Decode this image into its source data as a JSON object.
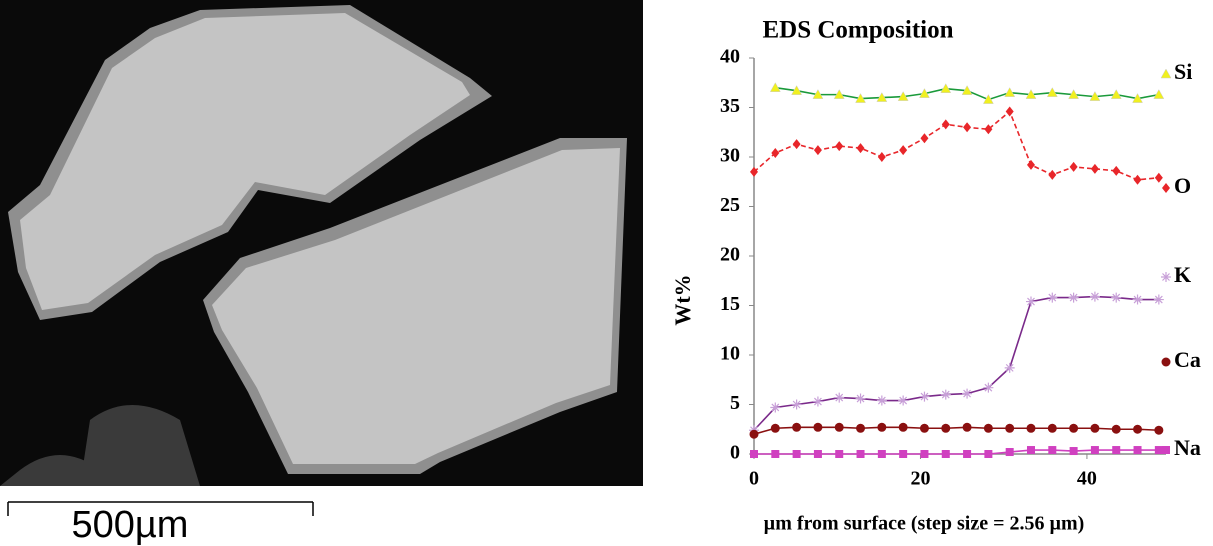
{
  "image": {
    "scale_label": "500µm"
  },
  "chart_data": {
    "type": "line",
    "title": "EDS Composition",
    "y_label": "Wt%",
    "x_label": "µm from surface (step size = 2.56 µm)",
    "x": [
      0,
      2.56,
      5.12,
      7.68,
      10.24,
      12.8,
      15.36,
      17.92,
      20.48,
      23.04,
      25.6,
      28.16,
      30.72,
      33.28,
      35.84,
      38.4,
      40.96,
      43.52,
      46.08,
      48.64
    ],
    "xlim": [
      0,
      49.5
    ],
    "xticks": [
      0,
      20,
      40
    ],
    "ylim": [
      0,
      40
    ],
    "yticks": [
      0,
      5,
      10,
      15,
      20,
      25,
      30,
      35,
      40
    ],
    "grid": false,
    "series": [
      {
        "name": "Si",
        "color": "#1a9a3a",
        "marker": "triangle",
        "marker_color": "#f0f020",
        "dashed": false,
        "values": [
          null,
          37.0,
          36.7,
          36.3,
          36.3,
          35.9,
          36.0,
          36.1,
          36.4,
          36.9,
          36.7,
          35.8,
          36.5,
          36.3,
          36.5,
          36.3,
          36.1,
          36.3,
          35.9,
          36.3
        ]
      },
      {
        "name": "O",
        "color": "#e8262a",
        "marker": "diamond",
        "marker_color": "#e8262a",
        "dashed": true,
        "values": [
          28.5,
          30.4,
          31.3,
          30.7,
          31.1,
          30.9,
          30.0,
          30.7,
          31.9,
          33.3,
          33.0,
          32.8,
          34.6,
          29.2,
          28.2,
          29.0,
          28.8,
          28.6,
          27.7,
          27.9
        ]
      },
      {
        "name": "K",
        "color": "#7a2a8a",
        "marker": "asterisk",
        "marker_color": "#c8a0d8",
        "dashed": false,
        "values": [
          2.4,
          4.7,
          5.0,
          5.3,
          5.7,
          5.6,
          5.4,
          5.4,
          5.8,
          6.0,
          6.1,
          6.7,
          8.7,
          15.4,
          15.8,
          15.8,
          15.9,
          15.8,
          15.6,
          15.6
        ]
      },
      {
        "name": "Ca",
        "color": "#8a1010",
        "marker": "circle",
        "marker_color": "#8a1010",
        "dashed": false,
        "values": [
          2.0,
          2.6,
          2.7,
          2.7,
          2.7,
          2.6,
          2.7,
          2.7,
          2.6,
          2.6,
          2.7,
          2.6,
          2.6,
          2.6,
          2.6,
          2.6,
          2.6,
          2.5,
          2.5,
          2.4
        ]
      },
      {
        "name": "Na",
        "color": "#d040c0",
        "marker": "square",
        "marker_color": "#d040c0",
        "dashed": false,
        "values": [
          0,
          0,
          0,
          0,
          0,
          0,
          0,
          0,
          0,
          0,
          0,
          0,
          0.2,
          0.4,
          0.4,
          0.3,
          0.4,
          0.4,
          0.4,
          0.4
        ]
      }
    ]
  }
}
